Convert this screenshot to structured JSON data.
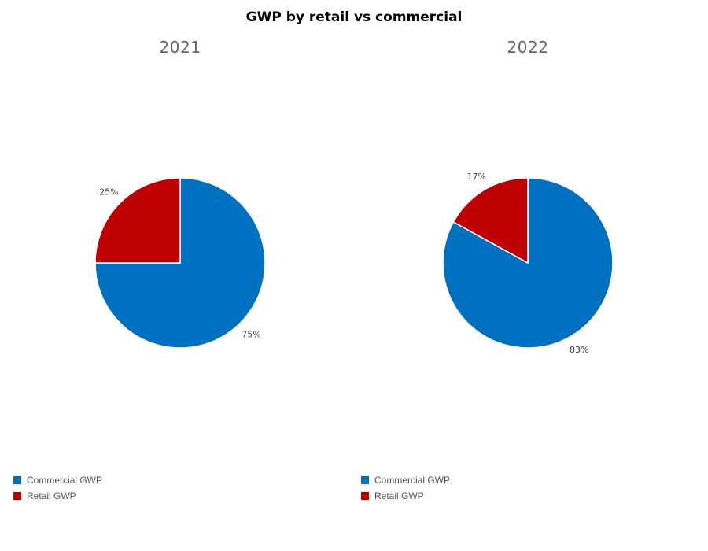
{
  "title": "GWP by retail vs commercial",
  "colors": {
    "commercial": "#0070c0",
    "retail": "#c00000"
  },
  "chart_data": [
    {
      "type": "pie",
      "title": "2021",
      "slices": [
        {
          "name": "Commercial GWP",
          "value": 75,
          "label": "75%",
          "color": "#0070c0"
        },
        {
          "name": "Retail GWP",
          "value": 25,
          "label": "25%",
          "color": "#c00000"
        }
      ],
      "legend": [
        "Commercial GWP",
        "Retail GWP"
      ],
      "legend_position": "bottom-left"
    },
    {
      "type": "pie",
      "title": "2022",
      "slices": [
        {
          "name": "Commercial GWP",
          "value": 83,
          "label": "83%",
          "color": "#0070c0"
        },
        {
          "name": "Retail GWP",
          "value": 17,
          "label": "17%",
          "color": "#c00000"
        }
      ],
      "legend": [
        "Commercial GWP",
        "Retail GWP"
      ],
      "legend_position": "bottom-left"
    }
  ]
}
